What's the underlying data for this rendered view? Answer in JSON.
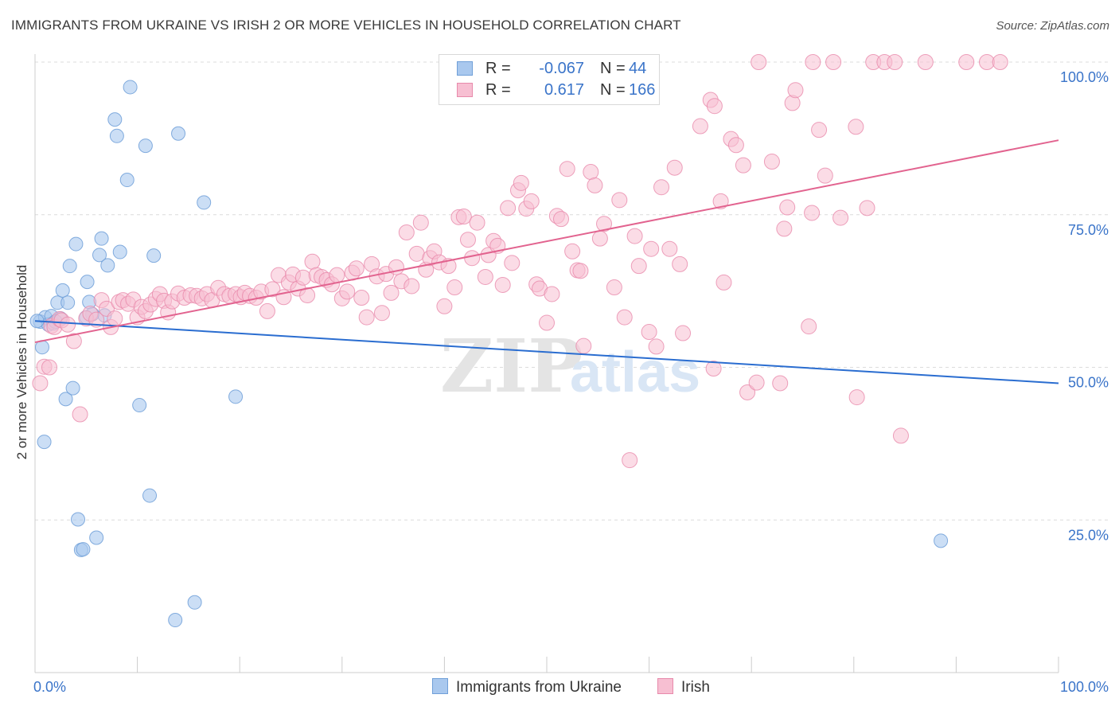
{
  "title": "IMMIGRANTS FROM UKRAINE VS IRISH 2 OR MORE VEHICLES IN HOUSEHOLD CORRELATION CHART",
  "source": "Source: ZipAtlas.com",
  "legend": {
    "series1": {
      "r_label": "R =",
      "r_value": "-0.067",
      "n_label": "N =",
      "n_value": "44"
    },
    "series2": {
      "r_label": "R =",
      "r_value": "0.617",
      "n_label": "N =",
      "n_value": "166"
    }
  },
  "colors": {
    "blue_fill": "#a9c8ee",
    "blue_stroke": "#6f9fd8",
    "blue_line": "#2a6dd0",
    "pink_fill": "#f7bfd2",
    "pink_stroke": "#e88aab",
    "pink_line": "#e2638f",
    "value_text": "#3a74c9",
    "grid": "#dcdcdc",
    "axis": "#cccccc"
  },
  "watermark": {
    "zip": "ZIP",
    "atlas": "atlas"
  },
  "chart_data": {
    "type": "scatter",
    "title": "IMMIGRANTS FROM UKRAINE VS IRISH 2 OR MORE VEHICLES IN HOUSEHOLD CORRELATION CHART",
    "xlabel": "",
    "ylabel": "2 or more Vehicles in Household",
    "xlim": [
      0,
      100
    ],
    "ylim": [
      0,
      100
    ],
    "x_tick_labels": {
      "left": "0.0%",
      "right": "100.0%"
    },
    "y_ticks": [
      {
        "value": 25,
        "label": "25.0%"
      },
      {
        "value": 50,
        "label": "50.0%"
      },
      {
        "value": 75,
        "label": "75.0%"
      },
      {
        "value": 100,
        "label": "100.0%"
      }
    ],
    "series": [
      {
        "name": "Immigrants from Ukraine",
        "color": "blue",
        "r": -0.067,
        "n": 44,
        "trend": {
          "x": [
            0,
            100
          ],
          "y": [
            57.6,
            47.4
          ]
        },
        "points": [
          [
            0.5,
            57.5
          ],
          [
            0.7,
            53.3
          ],
          [
            0.9,
            37.8
          ],
          [
            1.0,
            58.2
          ],
          [
            1.3,
            57.0
          ],
          [
            1.6,
            58.4
          ],
          [
            1.8,
            57.2
          ],
          [
            2.2,
            60.6
          ],
          [
            2.5,
            58.0
          ],
          [
            2.7,
            62.6
          ],
          [
            3.0,
            44.8
          ],
          [
            3.2,
            60.6
          ],
          [
            3.4,
            66.6
          ],
          [
            3.7,
            46.6
          ],
          [
            4.0,
            70.2
          ],
          [
            4.2,
            25.1
          ],
          [
            4.5,
            20.1
          ],
          [
            4.7,
            20.2
          ],
          [
            5.1,
            64.0
          ],
          [
            5.3,
            60.7
          ],
          [
            5.6,
            58.7
          ],
          [
            6.0,
            22.1
          ],
          [
            6.3,
            68.4
          ],
          [
            6.5,
            71.1
          ],
          [
            6.8,
            58.5
          ],
          [
            7.1,
            66.7
          ],
          [
            7.8,
            90.6
          ],
          [
            8.0,
            87.9
          ],
          [
            8.3,
            68.9
          ],
          [
            9.0,
            80.7
          ],
          [
            9.3,
            95.9
          ],
          [
            10.2,
            43.8
          ],
          [
            10.8,
            86.3
          ],
          [
            11.2,
            29.0
          ],
          [
            11.6,
            68.3
          ],
          [
            13.7,
            8.6
          ],
          [
            14.0,
            88.3
          ],
          [
            15.6,
            11.5
          ],
          [
            16.5,
            77.0
          ],
          [
            19.6,
            45.2
          ],
          [
            0.2,
            57.6
          ],
          [
            2.0,
            57.5
          ],
          [
            5.0,
            58.2
          ],
          [
            88.5,
            21.6
          ]
        ]
      },
      {
        "name": "Irish",
        "color": "pink",
        "r": 0.617,
        "n": 166,
        "trend": {
          "x": [
            0,
            100
          ],
          "y": [
            54.1,
            87.2
          ]
        },
        "points": [
          [
            0.5,
            47.4
          ],
          [
            0.9,
            50.1
          ],
          [
            1.4,
            50.0
          ],
          [
            1.6,
            56.8
          ],
          [
            1.9,
            56.6
          ],
          [
            2.4,
            57.9
          ],
          [
            2.6,
            57.7
          ],
          [
            3.2,
            57.0
          ],
          [
            3.8,
            54.3
          ],
          [
            4.4,
            42.3
          ],
          [
            5.0,
            58.0
          ],
          [
            5.4,
            58.8
          ],
          [
            6.0,
            57.8
          ],
          [
            6.5,
            61.0
          ],
          [
            7.0,
            59.6
          ],
          [
            7.4,
            56.6
          ],
          [
            7.8,
            58.0
          ],
          [
            8.2,
            60.7
          ],
          [
            8.6,
            61.0
          ],
          [
            9.1,
            60.4
          ],
          [
            9.6,
            61.1
          ],
          [
            10.0,
            58.2
          ],
          [
            10.4,
            59.9
          ],
          [
            10.8,
            59.2
          ],
          [
            11.3,
            60.3
          ],
          [
            11.8,
            61.2
          ],
          [
            12.2,
            62.0
          ],
          [
            12.6,
            60.9
          ],
          [
            13.0,
            59.0
          ],
          [
            13.4,
            60.8
          ],
          [
            14.0,
            62.1
          ],
          [
            14.6,
            61.4
          ],
          [
            15.2,
            61.8
          ],
          [
            15.8,
            61.7
          ],
          [
            16.3,
            61.3
          ],
          [
            16.8,
            62.0
          ],
          [
            17.3,
            61.0
          ],
          [
            17.9,
            63.0
          ],
          [
            18.5,
            62.0
          ],
          [
            19.0,
            61.7
          ],
          [
            19.6,
            62.0
          ],
          [
            20.1,
            61.5
          ],
          [
            20.5,
            62.2
          ],
          [
            21.0,
            61.7
          ],
          [
            21.6,
            61.4
          ],
          [
            22.1,
            62.4
          ],
          [
            22.7,
            59.2
          ],
          [
            23.2,
            62.8
          ],
          [
            23.8,
            65.1
          ],
          [
            24.3,
            61.5
          ],
          [
            24.8,
            63.9
          ],
          [
            25.2,
            65.2
          ],
          [
            25.7,
            62.9
          ],
          [
            26.2,
            64.7
          ],
          [
            26.6,
            61.8
          ],
          [
            27.1,
            67.3
          ],
          [
            27.5,
            65.1
          ],
          [
            28.0,
            64.8
          ],
          [
            28.5,
            64.3
          ],
          [
            29.0,
            63.6
          ],
          [
            29.5,
            65.1
          ],
          [
            30.0,
            61.3
          ],
          [
            30.5,
            62.4
          ],
          [
            31.0,
            65.5
          ],
          [
            31.4,
            66.2
          ],
          [
            31.9,
            61.4
          ],
          [
            32.4,
            58.2
          ],
          [
            32.9,
            66.9
          ],
          [
            33.4,
            64.9
          ],
          [
            33.9,
            58.9
          ],
          [
            34.3,
            65.3
          ],
          [
            34.8,
            62.2
          ],
          [
            35.3,
            66.4
          ],
          [
            35.8,
            64.1
          ],
          [
            36.3,
            72.1
          ],
          [
            36.8,
            63.3
          ],
          [
            37.3,
            68.6
          ],
          [
            37.7,
            73.7
          ],
          [
            38.2,
            66.0
          ],
          [
            38.6,
            67.9
          ],
          [
            39.0,
            69.0
          ],
          [
            39.5,
            67.2
          ],
          [
            40.0,
            60.0
          ],
          [
            40.4,
            66.6
          ],
          [
            41.0,
            63.1
          ],
          [
            41.4,
            74.6
          ],
          [
            41.9,
            74.7
          ],
          [
            42.3,
            70.9
          ],
          [
            42.7,
            67.9
          ],
          [
            43.2,
            73.7
          ],
          [
            44.0,
            64.8
          ],
          [
            44.3,
            68.4
          ],
          [
            44.8,
            70.7
          ],
          [
            45.2,
            69.9
          ],
          [
            45.7,
            63.5
          ],
          [
            46.2,
            76.1
          ],
          [
            46.6,
            67.1
          ],
          [
            47.2,
            79.0
          ],
          [
            47.5,
            80.2
          ],
          [
            48.0,
            76.0
          ],
          [
            48.5,
            77.2
          ],
          [
            49.0,
            63.6
          ],
          [
            49.3,
            62.9
          ],
          [
            50.0,
            57.3
          ],
          [
            50.5,
            62.0
          ],
          [
            51.0,
            74.8
          ],
          [
            51.4,
            74.3
          ],
          [
            52.0,
            82.5
          ],
          [
            52.5,
            69.0
          ],
          [
            53.0,
            65.9
          ],
          [
            53.3,
            65.8
          ],
          [
            53.6,
            53.5
          ],
          [
            54.3,
            82.0
          ],
          [
            54.7,
            79.8
          ],
          [
            55.2,
            71.1
          ],
          [
            55.6,
            73.5
          ],
          [
            56.6,
            63.1
          ],
          [
            57.1,
            77.4
          ],
          [
            57.6,
            58.2
          ],
          [
            58.1,
            34.8
          ],
          [
            58.6,
            71.5
          ],
          [
            59.0,
            66.6
          ],
          [
            60.0,
            55.8
          ],
          [
            60.2,
            69.4
          ],
          [
            60.7,
            53.4
          ],
          [
            61.2,
            79.5
          ],
          [
            62.0,
            69.4
          ],
          [
            62.5,
            82.7
          ],
          [
            63.0,
            66.9
          ],
          [
            63.3,
            55.6
          ],
          [
            65.0,
            89.5
          ],
          [
            66.0,
            93.8
          ],
          [
            66.4,
            92.8
          ],
          [
            67.0,
            77.2
          ],
          [
            67.3,
            63.9
          ],
          [
            68.0,
            87.4
          ],
          [
            68.5,
            86.4
          ],
          [
            69.2,
            83.1
          ],
          [
            69.6,
            45.9
          ],
          [
            70.5,
            47.5
          ],
          [
            72.0,
            83.7
          ],
          [
            72.8,
            47.4
          ],
          [
            73.2,
            72.7
          ],
          [
            73.5,
            76.2
          ],
          [
            74.0,
            93.3
          ],
          [
            74.3,
            95.4
          ],
          [
            75.6,
            56.7
          ],
          [
            75.9,
            75.3
          ],
          [
            76.6,
            88.9
          ],
          [
            77.2,
            81.4
          ],
          [
            78.7,
            74.5
          ],
          [
            80.2,
            89.4
          ],
          [
            80.3,
            45.1
          ],
          [
            81.3,
            76.1
          ],
          [
            84.6,
            38.8
          ],
          [
            70.7,
            100.0
          ],
          [
            76.0,
            100.0
          ],
          [
            78.0,
            100.0
          ],
          [
            81.9,
            100.0
          ],
          [
            83.0,
            100.0
          ],
          [
            84.0,
            100.0
          ],
          [
            87.0,
            100.0
          ],
          [
            91.0,
            100.0
          ],
          [
            93.0,
            100.0
          ],
          [
            94.3,
            100.0
          ],
          [
            66.3,
            49.8
          ]
        ]
      }
    ]
  }
}
